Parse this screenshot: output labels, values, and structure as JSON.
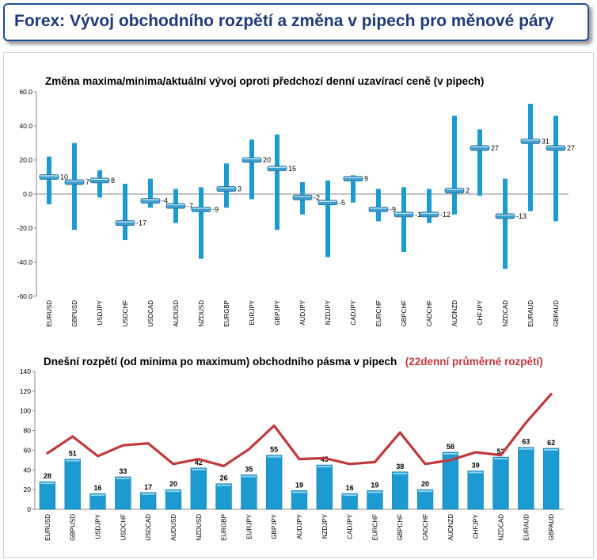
{
  "header": {
    "title": "Forex: Vývoj obchodního rozpětí a změna v pipech pro měnové páry"
  },
  "colors": {
    "header_border": "#1f4e96",
    "header_text": "#1f3a78",
    "bar": "#1b9bd1",
    "marker": "#3e9fd0",
    "line": "#c0393c"
  },
  "chart_data": [
    {
      "type": "range",
      "title": "Změna maxima/minima/aktuální vývoj oproti předchozí denní uzavírací ceně (v pipech)",
      "ylim": [
        -60,
        60
      ],
      "yticks": [
        "60.0",
        "40.0",
        "20.0",
        "0.0",
        "-20.0",
        "-40.0",
        "-60.0"
      ],
      "grid": false,
      "categories": [
        "EURUSD",
        "GBPUSD",
        "USDJPY",
        "USDCHF",
        "USDCAD",
        "AUDUSD",
        "NZDUSD",
        "EURGBP",
        "EURJPY",
        "GBPJPY",
        "AUDJPY",
        "NZDJPY",
        "CADJPY",
        "EURCHF",
        "GBPCHF",
        "CADCHF",
        "AUDNZD",
        "CHFJPY",
        "NZDCAD",
        "EURAUD",
        "GBPAUD"
      ],
      "high": [
        22,
        30,
        14,
        6,
        9,
        3,
        4,
        18,
        32,
        35,
        7,
        8,
        11,
        3,
        4,
        3,
        46,
        38,
        9,
        53,
        46
      ],
      "low": [
        -6,
        -21,
        -2,
        -27,
        -8,
        -17,
        -38,
        -8,
        -3,
        -21,
        -12,
        -37,
        -5,
        -16,
        -34,
        -17,
        -12,
        -1,
        -44,
        -10,
        -16
      ],
      "current": [
        10,
        7,
        8,
        -17,
        -4,
        -7,
        -9,
        3,
        20,
        15,
        -2,
        -5,
        9,
        -9,
        -12,
        -12,
        2,
        27,
        -13,
        31,
        27
      ],
      "labels": [
        "10",
        "7",
        "8",
        "-17",
        "-4",
        "-7",
        "-9",
        "3",
        "20",
        "15",
        "-2",
        "-5",
        "9",
        "-9",
        "-12",
        "-12",
        "2",
        "27",
        "-13",
        "31",
        "27"
      ]
    },
    {
      "type": "bar",
      "title": "Dnešní rozpětí (od minima po maximum) obchodního pásma v pipech",
      "title_suffix": "(22denní průměrné rozpětí)",
      "ylim": [
        0,
        140
      ],
      "yticks": [
        "140",
        "120",
        "100",
        "80",
        "60",
        "40",
        "20",
        "0"
      ],
      "grid": false,
      "categories": [
        "EURUSD",
        "GBPUSD",
        "USDJPY",
        "USDCHF",
        "USDCAD",
        "AUDUSD",
        "NZDUSD",
        "EURGBP",
        "EURJPY",
        "GBPJPY",
        "AUDJPY",
        "NZDJPY",
        "CADJPY",
        "EURCHF",
        "GBPCHF",
        "CADCHF",
        "AUDNZD",
        "CHFJPY",
        "NZDCAD",
        "EURAUD",
        "GBPAUD"
      ],
      "series": [
        {
          "values": [
            28,
            51,
            16,
            33,
            17,
            20,
            42,
            26,
            35,
            55,
            19,
            45,
            16,
            19,
            38,
            20,
            58,
            39,
            53,
            63,
            62
          ],
          "labels": [
            "28",
            "51",
            "16",
            "33",
            "17",
            "20",
            "42",
            "26",
            "35",
            "55",
            "19",
            "45",
            "16",
            "19",
            "38",
            "20",
            "58",
            "39",
            "53",
            "63",
            "62"
          ]
        },
        {
          "values": [
            57,
            74,
            54,
            65,
            67,
            46,
            51,
            44,
            61,
            85,
            51,
            52,
            46,
            48,
            78,
            46,
            50,
            58,
            55,
            88,
            117
          ]
        }
      ]
    }
  ]
}
